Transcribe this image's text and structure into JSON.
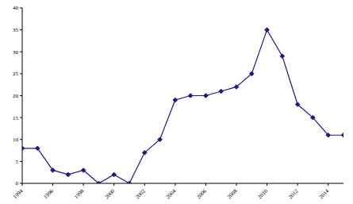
{
  "chart_data": {
    "type": "line",
    "x": [
      1994,
      1995,
      1996,
      1997,
      1998,
      1999,
      2000,
      2001,
      2002,
      2003,
      2004,
      2005,
      2006,
      2007,
      2008,
      2009,
      2010,
      2011,
      2012,
      2013,
      2014,
      2015
    ],
    "values": [
      8,
      8,
      3,
      2,
      3,
      0,
      2,
      0,
      7,
      10,
      19,
      20,
      20,
      21,
      22,
      25,
      35,
      29,
      18,
      15,
      11,
      11
    ],
    "color": "#1a1a80",
    "marker": "diamond",
    "xlim": [
      1994,
      2015
    ],
    "xticks": [
      1994,
      1996,
      1998,
      2000,
      2002,
      2004,
      2006,
      2008,
      2010,
      2012,
      2014
    ],
    "ylim": [
      0,
      40
    ],
    "yticks": [
      0,
      5,
      10,
      15,
      20,
      25,
      30,
      35,
      40
    ],
    "grid": false
  }
}
